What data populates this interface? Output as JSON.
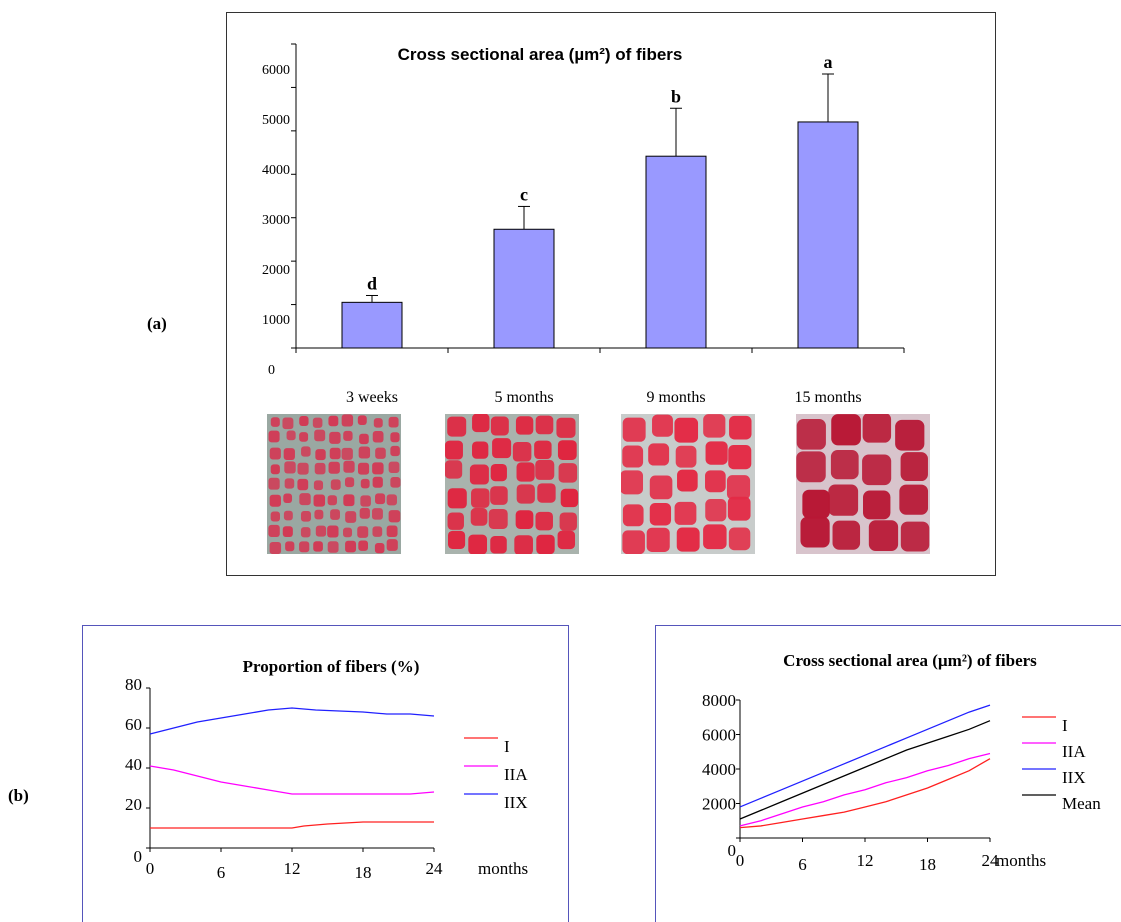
{
  "panel_labels": {
    "a": "(a)",
    "b": "(b)"
  },
  "colors": {
    "bar_fill": "#9999ff",
    "series_I": "#ff2020",
    "series_IIA": "#ff00ff",
    "series_IIX": "#2020ff",
    "series_Mean": "#000000",
    "frame_b": "#5555bb"
  },
  "micrographs": [
    {
      "name": "micrograph-3-weeks",
      "base": "#d23a55",
      "gap": "#9aa8a2",
      "cells": 9
    },
    {
      "name": "micrograph-5-months",
      "base": "#e0243f",
      "gap": "#a9b3ad",
      "cells": 6
    },
    {
      "name": "micrograph-9-months",
      "base": "#e32a45",
      "gap": "#c8cccb",
      "cells": 5
    },
    {
      "name": "micrograph-15-months",
      "base": "#b81835",
      "gap": "#d8c4cc",
      "cells": 4
    }
  ],
  "chart_data": [
    {
      "type": "bar",
      "title": "Cross sectional area (µm²) of fibers",
      "categories": [
        "3 weeks",
        "5 months",
        "9 months",
        "15 months"
      ],
      "values": [
        1000,
        2600,
        4200,
        4950
      ],
      "error_upper": [
        1150,
        3100,
        5250,
        6000
      ],
      "significance_labels": [
        "d",
        "c",
        "b",
        "a"
      ],
      "yticks": [
        "0",
        "1000",
        "2000",
        "3000",
        "4000",
        "5000",
        "6000"
      ],
      "ylim": [
        0,
        6800
      ],
      "grid": false
    },
    {
      "type": "line",
      "title": "Proportion of fibers (%)",
      "xlabel": "months",
      "xticks": [
        "0",
        "6",
        "12",
        "18",
        "24"
      ],
      "yticks": [
        "0",
        "20",
        "40",
        "60",
        "80"
      ],
      "xlim": [
        0,
        24
      ],
      "ylim": [
        0,
        80
      ],
      "legend_position": "right",
      "series": [
        {
          "name": "I",
          "color": "#ff2020",
          "x": [
            0,
            6,
            12,
            13,
            15,
            18,
            24
          ],
          "y": [
            10,
            10,
            10,
            11,
            12,
            13,
            13
          ]
        },
        {
          "name": "IIA",
          "color": "#ff00ff",
          "x": [
            0,
            2,
            4,
            6,
            8,
            10,
            12,
            14,
            18,
            22,
            24
          ],
          "y": [
            41,
            39,
            36,
            33,
            31,
            29,
            27,
            27,
            27,
            27,
            28
          ]
        },
        {
          "name": "IIX",
          "color": "#2020ff",
          "x": [
            0,
            2,
            4,
            6,
            8,
            10,
            12,
            14,
            18,
            20,
            22,
            24
          ],
          "y": [
            57,
            60,
            63,
            65,
            67,
            69,
            70,
            69,
            68,
            67,
            67,
            66
          ]
        }
      ]
    },
    {
      "type": "line",
      "title": "Cross sectional area (µm²) of fibers",
      "xlabel": "months",
      "xticks": [
        "0",
        "6",
        "12",
        "18",
        "24"
      ],
      "yticks": [
        "0",
        "2000",
        "4000",
        "6000",
        "8000"
      ],
      "xlim": [
        0,
        24
      ],
      "ylim": [
        0,
        8000
      ],
      "legend_position": "right",
      "series": [
        {
          "name": "I",
          "color": "#ff2020",
          "x": [
            0,
            2,
            4,
            6,
            8,
            10,
            12,
            14,
            16,
            18,
            20,
            22,
            24
          ],
          "y": [
            600,
            700,
            900,
            1100,
            1300,
            1500,
            1800,
            2100,
            2500,
            2900,
            3400,
            3900,
            4600
          ]
        },
        {
          "name": "IIA",
          "color": "#ff00ff",
          "x": [
            0,
            2,
            4,
            6,
            8,
            10,
            12,
            14,
            16,
            18,
            20,
            22,
            24
          ],
          "y": [
            700,
            1000,
            1400,
            1800,
            2100,
            2500,
            2800,
            3200,
            3500,
            3900,
            4200,
            4600,
            4900
          ]
        },
        {
          "name": "IIX",
          "color": "#2020ff",
          "x": [
            0,
            2,
            4,
            6,
            8,
            10,
            12,
            14,
            16,
            18,
            20,
            22,
            24
          ],
          "y": [
            1800,
            2300,
            2800,
            3300,
            3800,
            4300,
            4800,
            5300,
            5800,
            6300,
            6800,
            7300,
            7700
          ]
        },
        {
          "name": "Mean",
          "color": "#000000",
          "x": [
            0,
            2,
            4,
            6,
            8,
            10,
            12,
            14,
            16,
            18,
            20,
            22,
            24
          ],
          "y": [
            1100,
            1600,
            2100,
            2600,
            3100,
            3600,
            4100,
            4600,
            5100,
            5500,
            5900,
            6300,
            6800
          ]
        }
      ]
    }
  ]
}
